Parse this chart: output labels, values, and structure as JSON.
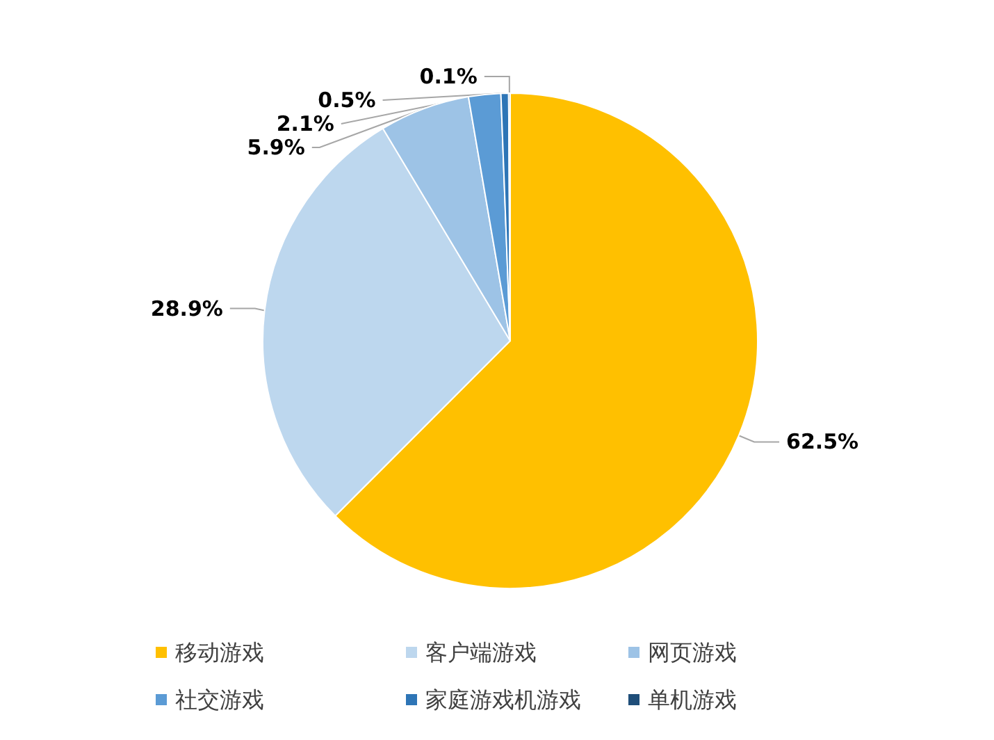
{
  "chart_data": {
    "type": "pie",
    "categories": [
      "移动游戏",
      "客户端游戏",
      "网页游戏",
      "社交游戏",
      "家庭游戏机游戏",
      "单机游戏"
    ],
    "values": [
      62.5,
      28.9,
      5.9,
      2.1,
      0.5,
      0.1
    ],
    "colors": [
      "#ffc000",
      "#bdd7ee",
      "#9dc3e6",
      "#5b9bd5",
      "#2e75b6",
      "#1f4e79"
    ],
    "value_labels": [
      "62.5%",
      "28.9%",
      "5.9%",
      "2.1%",
      "0.5%",
      "0.1%"
    ],
    "legend": "bottom"
  }
}
